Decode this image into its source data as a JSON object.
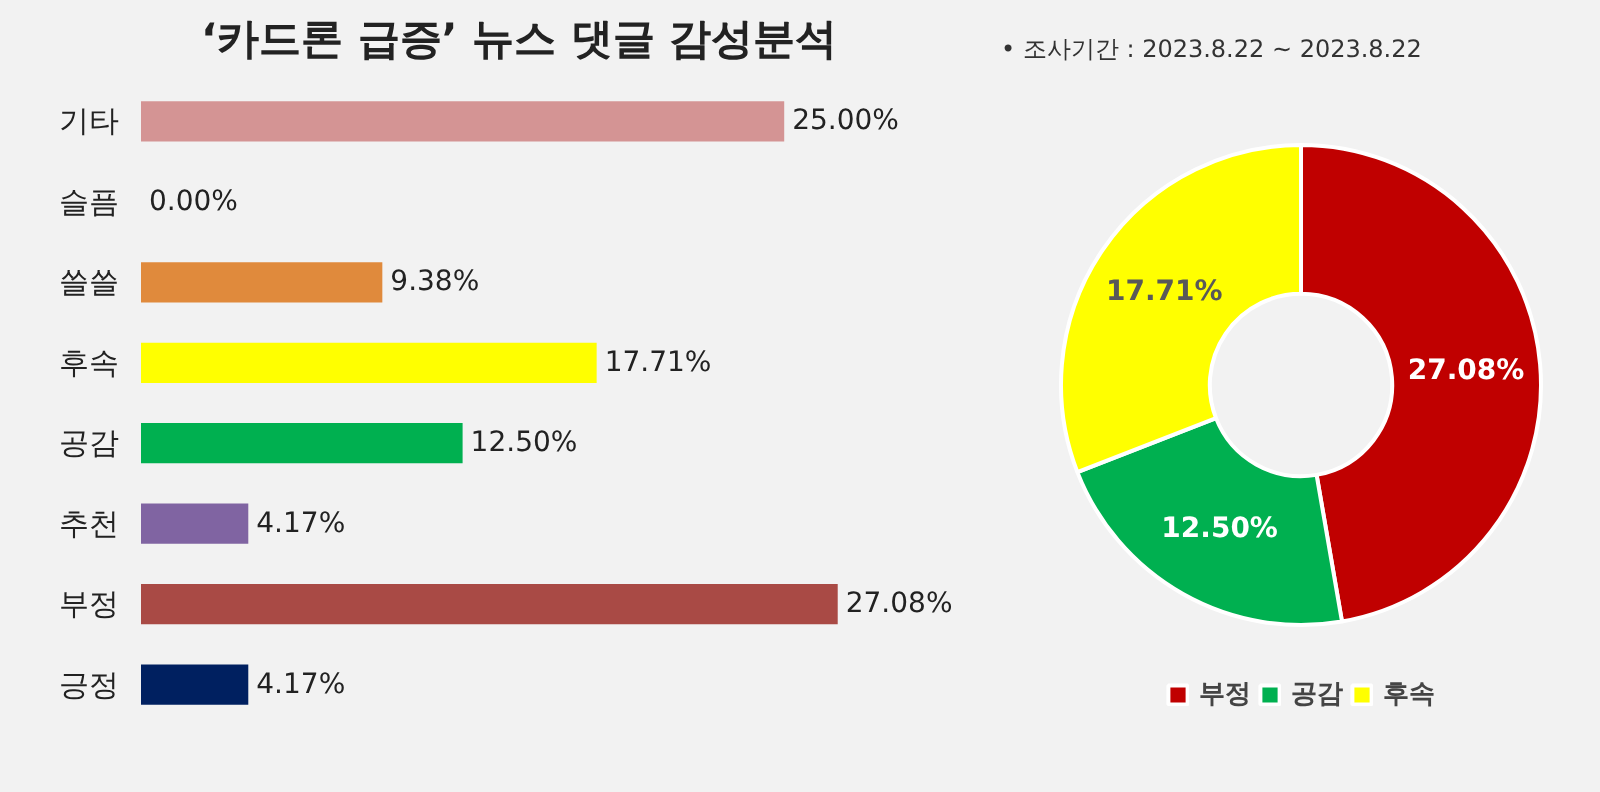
{
  "chart_data": [
    {
      "type": "bar",
      "orientation": "horizontal",
      "title": "‘카드론 급증’ 뉴스 댓글 감성분석",
      "categories": [
        "기타",
        "슬픔",
        "쓸쓸",
        "후속",
        "공감",
        "추천",
        "부정",
        "긍정"
      ],
      "values": [
        25.0,
        0.0,
        9.38,
        17.71,
        12.5,
        4.17,
        27.08,
        4.17
      ],
      "colors": [
        "#d49494",
        "#a6a6a6",
        "#e08a3c",
        "#ffff00",
        "#00b050",
        "#8064a2",
        "#a94a45",
        "#002060"
      ],
      "value_labels": [
        "25.00%",
        "0.00%",
        "9.38%",
        "17.71%",
        "12.50%",
        "4.17%",
        "27.08%",
        "4.17%"
      ],
      "tick_labels": "y",
      "grid": false
    },
    {
      "type": "donut",
      "annotations": [
        "•   조사기간 : 2023.8.22 ~ 2023.8.22"
      ],
      "categories": [
        "부정",
        "공감",
        "후속"
      ],
      "values": [
        27.08,
        12.5,
        17.71
      ],
      "colors": [
        "#c00000",
        "#00b050",
        "#ffff00"
      ],
      "value_labels": [
        "27.08%",
        "12.50%",
        "17.71%"
      ],
      "legend": "bottom"
    }
  ]
}
